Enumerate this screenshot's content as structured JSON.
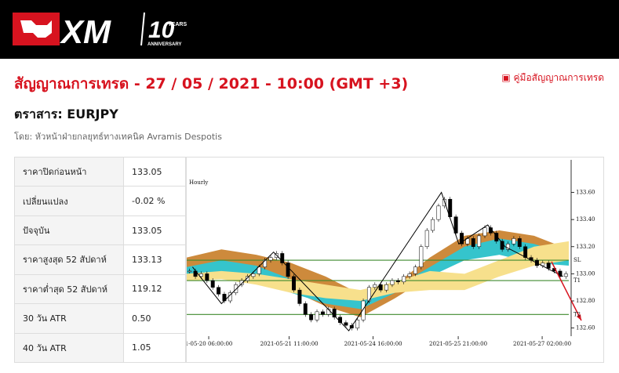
{
  "logo": {
    "brand": "XM",
    "anniversary_number": "10",
    "years": "YEARS",
    "anniversary": "ANNIVERSARY"
  },
  "title": "สัญญาณการเทรด - 27 / 05 / 2021 - 10:00 (GMT +3)",
  "guide_link": "คู่มือสัญญาณการเทรด",
  "instrument": "ตราสาร: EURJPY",
  "author": "โดย: หัวหน้าฝ่ายกลยุทธ์ทางเทคนิค Avramis Despotis",
  "table": {
    "rows": [
      [
        "ราคาปิดก่อนหน้า",
        "133.05"
      ],
      [
        "เปลี่ยนแปลง",
        "-0.02 %"
      ],
      [
        "ปัจจุบัน",
        "133.05"
      ],
      [
        "ราคาสูงสุด 52 สัปดาห์",
        "133.13"
      ],
      [
        "ราคาต่ำสุด 52 สัปดาห์",
        "119.12"
      ],
      [
        "30 วัน ATR",
        "0.50"
      ],
      [
        "40 วัน ATR",
        "1.05"
      ]
    ]
  },
  "chart": {
    "timeframe": "Hourly",
    "xlim": [
      0,
      66
    ],
    "ylim": [
      132.54,
      133.84
    ],
    "yticks": [
      {
        "value": 133.6,
        "label": "133.60"
      },
      {
        "value": 133.4,
        "label": "133.40"
      },
      {
        "value": 133.2,
        "label": "133.20"
      },
      {
        "value": 133.0,
        "label": "133.00"
      },
      {
        "value": 132.8,
        "label": "132.80"
      },
      {
        "value": 132.6,
        "label": "132.60"
      }
    ],
    "xticks": [
      {
        "value": 3.8,
        "label": "1-05-20 06:00:00"
      },
      {
        "value": 17.7,
        "label": "2021-05-21 11:00:00"
      },
      {
        "value": 32.2,
        "label": "2021-05-24 16:00:00"
      },
      {
        "value": 46.9,
        "label": "2021-05-25 21:00:00"
      },
      {
        "value": 61.4,
        "label": "2021-05-27 02:00:00"
      }
    ],
    "closes": [
      133.02,
      132.98,
      133.0,
      132.95,
      132.9,
      132.85,
      132.8,
      132.86,
      132.92,
      132.95,
      132.98,
      133.0,
      133.05,
      133.1,
      133.12,
      133.15,
      133.08,
      132.98,
      132.88,
      132.78,
      132.7,
      132.66,
      132.72,
      132.7,
      132.74,
      132.68,
      132.64,
      132.62,
      132.6,
      132.66,
      132.8,
      132.9,
      132.92,
      132.88,
      132.92,
      132.95,
      132.94,
      132.98,
      133.0,
      133.05,
      133.2,
      133.32,
      133.4,
      133.5,
      133.55,
      133.42,
      133.3,
      133.22,
      133.26,
      133.2,
      133.28,
      133.34,
      133.3,
      133.24,
      133.18,
      133.22,
      133.26,
      133.2,
      133.12,
      133.1,
      133.06,
      133.08,
      133.04,
      133.02,
      132.98,
      133.0
    ],
    "band_x": [
      0,
      6,
      12,
      18,
      24,
      30,
      36,
      42,
      48,
      54,
      60,
      66
    ],
    "bands": [
      {
        "color": "#cd8a3c",
        "upper": [
          133.12,
          133.18,
          133.14,
          133.08,
          132.98,
          132.85,
          132.92,
          133.12,
          133.28,
          133.32,
          133.28,
          133.18
        ],
        "lower": [
          133.0,
          133.02,
          132.98,
          132.88,
          132.76,
          132.68,
          132.82,
          132.98,
          133.12,
          133.18,
          133.1,
          133.08
        ]
      },
      {
        "color": "#35c4cc",
        "upper": [
          133.05,
          133.1,
          133.06,
          132.96,
          132.86,
          132.8,
          132.9,
          133.05,
          133.2,
          133.26,
          133.22,
          133.14
        ],
        "lower": [
          132.98,
          133.0,
          132.96,
          132.86,
          132.78,
          132.74,
          132.86,
          132.98,
          133.1,
          133.14,
          133.08,
          133.06
        ]
      },
      {
        "color": "#f7e08c",
        "upper": [
          133.0,
          133.02,
          133.0,
          132.96,
          132.92,
          132.88,
          132.94,
          133.02,
          133.0,
          133.1,
          133.2,
          133.24
        ],
        "lower": [
          132.95,
          132.96,
          132.92,
          132.86,
          132.82,
          132.8,
          132.86,
          132.88,
          132.88,
          132.98,
          133.06,
          133.1
        ]
      }
    ],
    "zigzag": {
      "x": [
        1,
        6,
        15,
        28,
        44,
        47,
        52,
        55,
        65
      ],
      "values": [
        133.05,
        132.78,
        133.16,
        132.58,
        133.6,
        133.22,
        133.36,
        133.2,
        132.98
      ]
    },
    "levels": [
      {
        "label": "SL",
        "value": 133.1
      },
      {
        "label": "T1",
        "value": 132.95
      },
      {
        "label": "T2",
        "value": 132.7
      }
    ],
    "level_color": "#3f8a2e"
  }
}
